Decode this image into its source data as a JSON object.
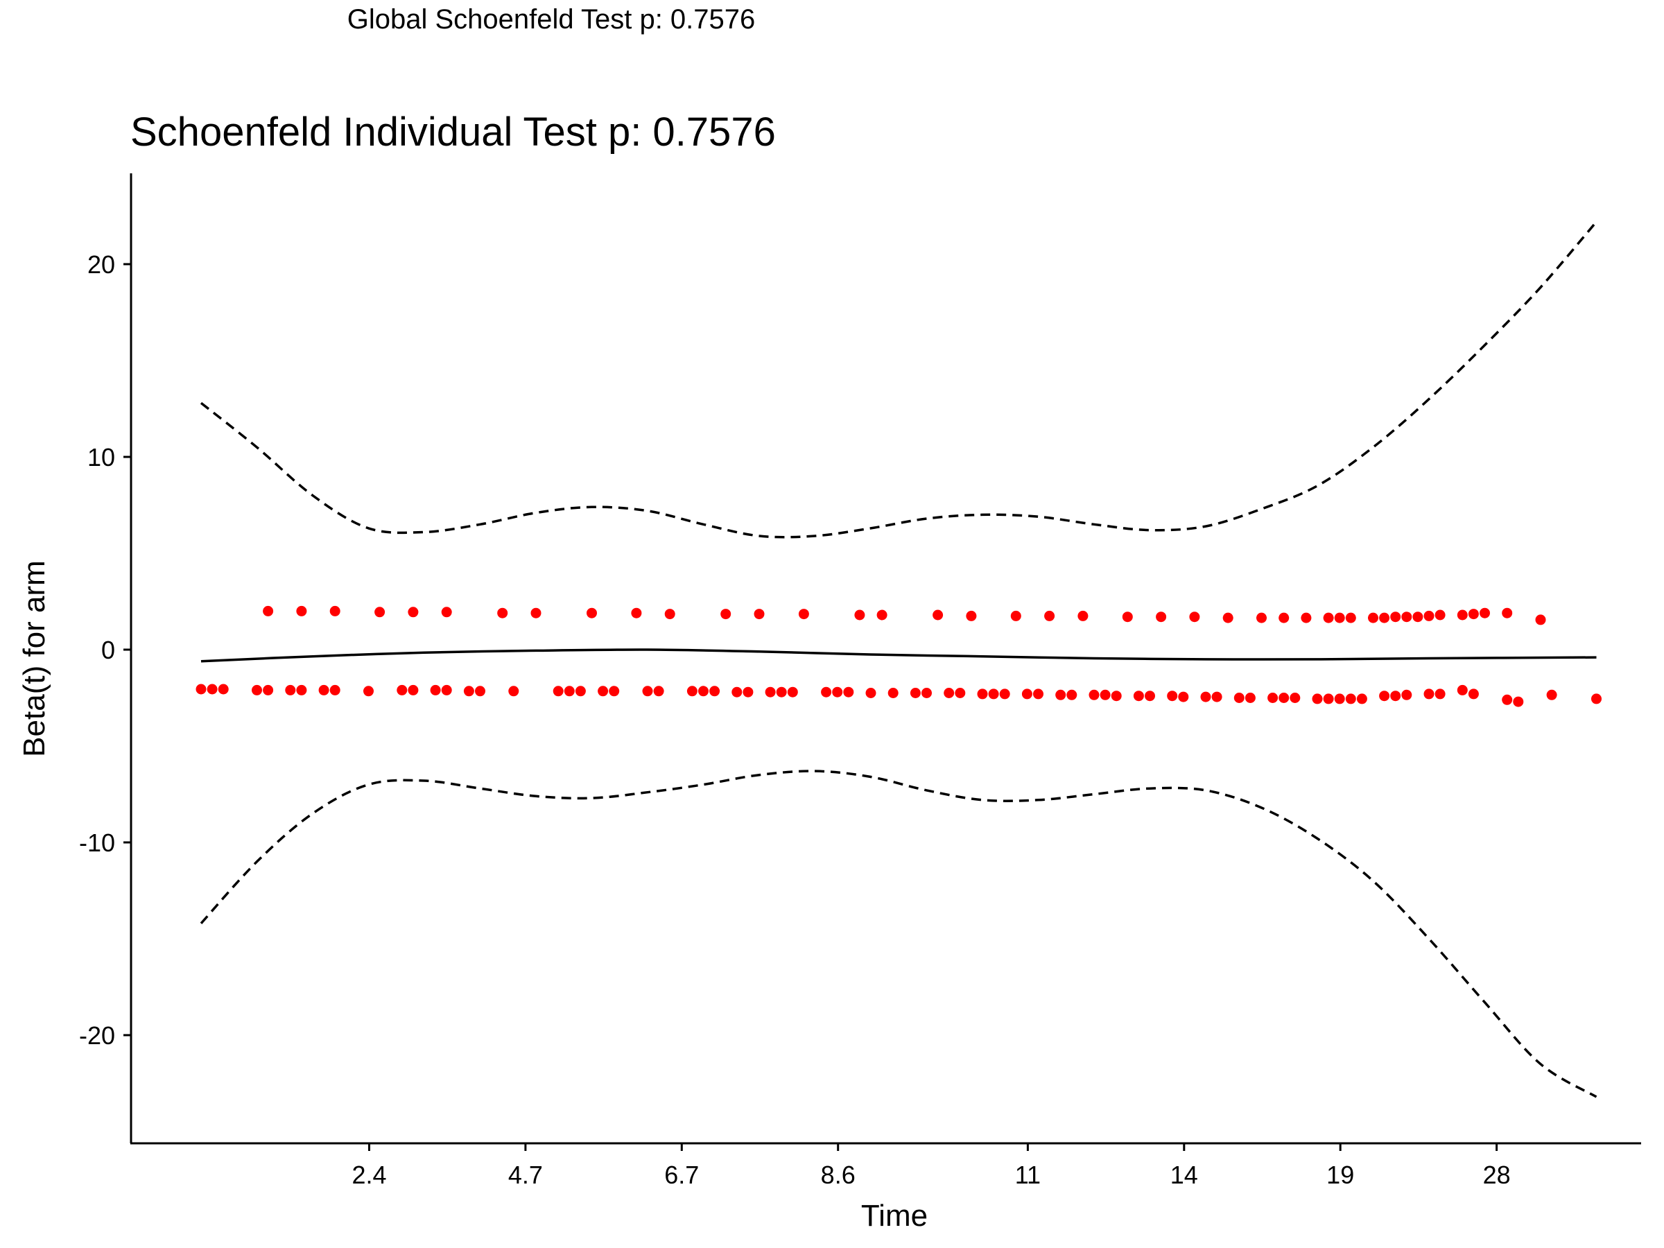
{
  "global_title": "Global Schoenfeld Test p: 0.7576",
  "chart_data": {
    "type": "scatter",
    "title": "Schoenfeld Individual Test p: 0.7576",
    "xlabel": "Time",
    "ylabel": "Beta(t) for arm",
    "ylim": [
      -25,
      24
    ],
    "yticks": [
      20,
      10,
      0,
      -10,
      -20
    ],
    "x_index_range": [
      0,
      143
    ],
    "xticks": [
      {
        "label": "2.4",
        "index": 15
      },
      {
        "label": "4.7",
        "index": 29
      },
      {
        "label": "6.7",
        "index": 43
      },
      {
        "label": "8.6",
        "index": 57
      },
      {
        "label": "11",
        "index": 74
      },
      {
        "label": "14",
        "index": 88
      },
      {
        "label": "19",
        "index": 102
      },
      {
        "label": "28",
        "index": 116
      }
    ],
    "grid": false,
    "colors": {
      "points": "#ff0000",
      "lines": "#000000"
    },
    "series": [
      {
        "name": "",
        "style": "points",
        "color": "#ff0000",
        "points": [
          [
            6,
            2.0
          ],
          [
            9,
            2.0
          ],
          [
            12,
            2.0
          ],
          [
            16,
            1.95
          ],
          [
            19,
            1.95
          ],
          [
            22,
            1.95
          ],
          [
            27,
            1.9
          ],
          [
            30,
            1.9
          ],
          [
            35,
            1.9
          ],
          [
            39,
            1.9
          ],
          [
            42,
            1.85
          ],
          [
            47,
            1.85
          ],
          [
            50,
            1.85
          ],
          [
            54,
            1.85
          ],
          [
            59,
            1.8
          ],
          [
            61,
            1.8
          ],
          [
            66,
            1.8
          ],
          [
            69,
            1.75
          ],
          [
            73,
            1.75
          ],
          [
            76,
            1.75
          ],
          [
            79,
            1.75
          ],
          [
            83,
            1.7
          ],
          [
            86,
            1.7
          ],
          [
            89,
            1.7
          ],
          [
            92,
            1.65
          ],
          [
            95,
            1.65
          ],
          [
            97,
            1.65
          ],
          [
            99,
            1.65
          ],
          [
            101,
            1.65
          ],
          [
            102,
            1.65
          ],
          [
            103,
            1.65
          ],
          [
            105,
            1.65
          ],
          [
            106,
            1.65
          ],
          [
            107,
            1.7
          ],
          [
            108,
            1.7
          ],
          [
            109,
            1.7
          ],
          [
            110,
            1.75
          ],
          [
            111,
            1.8
          ],
          [
            113,
            1.8
          ],
          [
            114,
            1.85
          ],
          [
            115,
            1.9
          ],
          [
            117,
            1.9
          ],
          [
            120,
            1.55
          ],
          [
            0,
            -2.05
          ],
          [
            1,
            -2.05
          ],
          [
            2,
            -2.05
          ],
          [
            5,
            -2.1
          ],
          [
            6,
            -2.1
          ],
          [
            8,
            -2.1
          ],
          [
            9,
            -2.1
          ],
          [
            11,
            -2.1
          ],
          [
            12,
            -2.1
          ],
          [
            15,
            -2.15
          ],
          [
            18,
            -2.1
          ],
          [
            19,
            -2.1
          ],
          [
            21,
            -2.1
          ],
          [
            22,
            -2.1
          ],
          [
            24,
            -2.15
          ],
          [
            25,
            -2.15
          ],
          [
            28,
            -2.15
          ],
          [
            32,
            -2.15
          ],
          [
            33,
            -2.15
          ],
          [
            34,
            -2.15
          ],
          [
            36,
            -2.15
          ],
          [
            37,
            -2.15
          ],
          [
            40,
            -2.15
          ],
          [
            41,
            -2.15
          ],
          [
            44,
            -2.15
          ],
          [
            45,
            -2.15
          ],
          [
            46,
            -2.15
          ],
          [
            48,
            -2.2
          ],
          [
            49,
            -2.2
          ],
          [
            51,
            -2.2
          ],
          [
            52,
            -2.2
          ],
          [
            53,
            -2.2
          ],
          [
            56,
            -2.2
          ],
          [
            57,
            -2.2
          ],
          [
            58,
            -2.2
          ],
          [
            60,
            -2.25
          ],
          [
            62,
            -2.25
          ],
          [
            64,
            -2.25
          ],
          [
            65,
            -2.25
          ],
          [
            67,
            -2.25
          ],
          [
            68,
            -2.25
          ],
          [
            70,
            -2.3
          ],
          [
            71,
            -2.3
          ],
          [
            72,
            -2.3
          ],
          [
            74,
            -2.3
          ],
          [
            75,
            -2.3
          ],
          [
            77,
            -2.35
          ],
          [
            78,
            -2.35
          ],
          [
            80,
            -2.35
          ],
          [
            81,
            -2.35
          ],
          [
            82,
            -2.4
          ],
          [
            84,
            -2.4
          ],
          [
            85,
            -2.4
          ],
          [
            87,
            -2.4
          ],
          [
            88,
            -2.45
          ],
          [
            90,
            -2.45
          ],
          [
            91,
            -2.45
          ],
          [
            93,
            -2.5
          ],
          [
            94,
            -2.5
          ],
          [
            96,
            -2.5
          ],
          [
            97,
            -2.5
          ],
          [
            98,
            -2.5
          ],
          [
            100,
            -2.55
          ],
          [
            101,
            -2.55
          ],
          [
            102,
            -2.55
          ],
          [
            103,
            -2.55
          ],
          [
            104,
            -2.55
          ],
          [
            106,
            -2.4
          ],
          [
            107,
            -2.4
          ],
          [
            108,
            -2.35
          ],
          [
            110,
            -2.3
          ],
          [
            111,
            -2.3
          ],
          [
            113,
            -2.1
          ],
          [
            114,
            -2.3
          ],
          [
            117,
            -2.6
          ],
          [
            118,
            -2.7
          ],
          [
            121,
            -2.35
          ],
          [
            125,
            -2.55
          ]
        ]
      },
      {
        "name": "",
        "style": "solid",
        "color": "#000000",
        "points": [
          [
            0,
            -0.6
          ],
          [
            10,
            -0.35
          ],
          [
            20,
            -0.15
          ],
          [
            30,
            -0.05
          ],
          [
            40,
            0.0
          ],
          [
            50,
            -0.1
          ],
          [
            60,
            -0.25
          ],
          [
            70,
            -0.35
          ],
          [
            80,
            -0.45
          ],
          [
            90,
            -0.5
          ],
          [
            100,
            -0.5
          ],
          [
            110,
            -0.45
          ],
          [
            125,
            -0.4
          ]
        ]
      },
      {
        "name": "",
        "style": "dashed",
        "color": "#000000",
        "points": [
          [
            0,
            12.8
          ],
          [
            5,
            10.5
          ],
          [
            10,
            8.0
          ],
          [
            15,
            6.3
          ],
          [
            20,
            6.1
          ],
          [
            25,
            6.5
          ],
          [
            30,
            7.1
          ],
          [
            35,
            7.4
          ],
          [
            40,
            7.2
          ],
          [
            45,
            6.5
          ],
          [
            50,
            5.9
          ],
          [
            55,
            5.9
          ],
          [
            60,
            6.3
          ],
          [
            65,
            6.8
          ],
          [
            70,
            7.0
          ],
          [
            75,
            6.9
          ],
          [
            80,
            6.5
          ],
          [
            85,
            6.2
          ],
          [
            90,
            6.4
          ],
          [
            95,
            7.3
          ],
          [
            100,
            8.5
          ],
          [
            105,
            10.5
          ],
          [
            110,
            13.0
          ],
          [
            115,
            15.8
          ],
          [
            120,
            18.8
          ],
          [
            125,
            22.2
          ]
        ]
      },
      {
        "name": "",
        "style": "dashed",
        "color": "#000000",
        "points": [
          [
            0,
            -14.2
          ],
          [
            5,
            -11.0
          ],
          [
            10,
            -8.5
          ],
          [
            15,
            -7.0
          ],
          [
            20,
            -6.8
          ],
          [
            25,
            -7.2
          ],
          [
            30,
            -7.6
          ],
          [
            35,
            -7.7
          ],
          [
            40,
            -7.4
          ],
          [
            45,
            -7.0
          ],
          [
            50,
            -6.5
          ],
          [
            55,
            -6.3
          ],
          [
            60,
            -6.6
          ],
          [
            65,
            -7.3
          ],
          [
            70,
            -7.8
          ],
          [
            75,
            -7.8
          ],
          [
            80,
            -7.5
          ],
          [
            85,
            -7.2
          ],
          [
            90,
            -7.3
          ],
          [
            95,
            -8.2
          ],
          [
            100,
            -9.8
          ],
          [
            105,
            -12.0
          ],
          [
            110,
            -15.0
          ],
          [
            115,
            -18.3
          ],
          [
            120,
            -21.5
          ],
          [
            125,
            -23.2
          ]
        ]
      }
    ]
  }
}
